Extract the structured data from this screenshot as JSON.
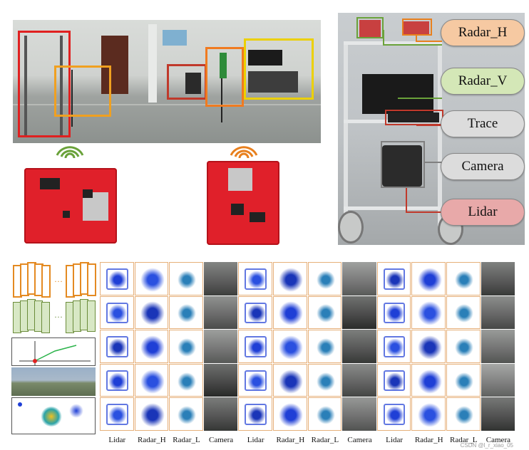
{
  "sensors": {
    "radar_h": "Radar_H",
    "radar_v": "Radar_V",
    "trace": "Trace",
    "camera": "Camera",
    "lidar": "Lidar"
  },
  "grid_labels": [
    "Lidar",
    "Radar_H",
    "Radar_L",
    "Camera",
    "Lidar",
    "Radar_H",
    "Radar_L",
    "Camera",
    "Lidar",
    "Radar_H",
    "Radar_L",
    "Camera"
  ],
  "watermark": "CSDN @l_r_xiao_05",
  "colors": {
    "radar_h_pill": "#f6c9a2",
    "radar_v_pill": "#d4e7b7",
    "trace_pill": "#dcdcdc",
    "camera_pill": "#dcdcdc",
    "lidar_pill": "#e8a9a9",
    "box_red": "#e02020",
    "box_orange": "#f0a020",
    "box_yellow": "#ecd000",
    "box_darkred": "#c0392b",
    "point_blue": "#1f3fd6",
    "point_teal": "#2aa3a8"
  }
}
